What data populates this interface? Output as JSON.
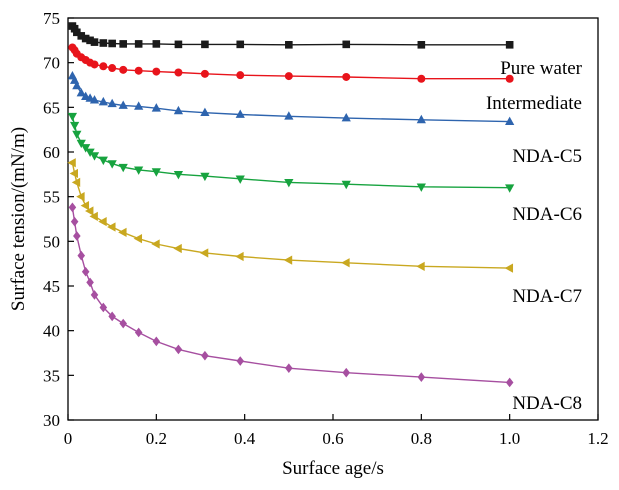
{
  "chart_data": {
    "type": "line",
    "title": "",
    "xlabel": "Surface age/s",
    "ylabel": "Surface tension/(mN/m)",
    "xlim": [
      0,
      1.2
    ],
    "ylim": [
      30,
      75
    ],
    "xticks": [
      "0",
      "0.2",
      "0.4",
      "0.6",
      "0.8",
      "1.0",
      "1.2"
    ],
    "yticks": [
      "30",
      "35",
      "40",
      "45",
      "50",
      "55",
      "60",
      "65",
      "70",
      "75"
    ],
    "grid": false,
    "series": [
      {
        "name": "Pure water",
        "color": "#1a1a1a",
        "marker": "square",
        "x": [
          0.01,
          0.015,
          0.02,
          0.03,
          0.04,
          0.05,
          0.06,
          0.08,
          0.1,
          0.125,
          0.16,
          0.2,
          0.25,
          0.31,
          0.39,
          0.5,
          0.63,
          0.8,
          1.0
        ],
        "y": [
          74.1,
          73.8,
          73.4,
          73.0,
          72.7,
          72.5,
          72.3,
          72.2,
          72.15,
          72.1,
          72.1,
          72.1,
          72.05,
          72.05,
          72.05,
          72.0,
          72.05,
          72.0,
          72.0
        ]
      },
      {
        "name": "Intermediate",
        "color": "#e8141b",
        "marker": "circle",
        "x": [
          0.01,
          0.015,
          0.02,
          0.03,
          0.04,
          0.05,
          0.06,
          0.08,
          0.1,
          0.125,
          0.16,
          0.2,
          0.25,
          0.31,
          0.39,
          0.5,
          0.63,
          0.8,
          1.0
        ],
        "y": [
          71.7,
          71.4,
          71.0,
          70.6,
          70.3,
          70.0,
          69.8,
          69.6,
          69.4,
          69.2,
          69.1,
          69.0,
          68.9,
          68.75,
          68.6,
          68.5,
          68.4,
          68.2,
          68.2
        ]
      },
      {
        "name": "NDA-C5",
        "color": "#2e64ae",
        "marker": "triangle-up",
        "x": [
          0.01,
          0.015,
          0.02,
          0.03,
          0.04,
          0.05,
          0.06,
          0.08,
          0.1,
          0.125,
          0.16,
          0.2,
          0.25,
          0.31,
          0.39,
          0.5,
          0.63,
          0.8,
          1.0
        ],
        "y": [
          68.5,
          68.0,
          67.4,
          66.6,
          66.2,
          66.0,
          65.8,
          65.6,
          65.4,
          65.2,
          65.1,
          64.9,
          64.6,
          64.4,
          64.2,
          64.0,
          63.8,
          63.6,
          63.4
        ]
      },
      {
        "name": "NDA-C6",
        "color": "#17a33f",
        "marker": "triangle-down",
        "x": [
          0.01,
          0.015,
          0.02,
          0.03,
          0.04,
          0.05,
          0.06,
          0.08,
          0.1,
          0.125,
          0.16,
          0.2,
          0.25,
          0.31,
          0.39,
          0.5,
          0.63,
          0.8,
          1.0
        ],
        "y": [
          64.0,
          63.0,
          62.0,
          61.0,
          60.5,
          60.0,
          59.6,
          59.1,
          58.7,
          58.3,
          58.0,
          57.8,
          57.5,
          57.3,
          57.0,
          56.6,
          56.4,
          56.1,
          56.0
        ]
      },
      {
        "name": "NDA-C7",
        "color": "#c9a820",
        "marker": "triangle-left",
        "x": [
          0.01,
          0.015,
          0.02,
          0.03,
          0.04,
          0.05,
          0.06,
          0.08,
          0.1,
          0.125,
          0.16,
          0.2,
          0.25,
          0.31,
          0.39,
          0.5,
          0.63,
          0.8,
          1.0
        ],
        "y": [
          58.8,
          57.6,
          56.6,
          55.0,
          54.0,
          53.4,
          52.8,
          52.2,
          51.6,
          51.0,
          50.3,
          49.7,
          49.2,
          48.7,
          48.3,
          47.9,
          47.6,
          47.2,
          47.0
        ]
      },
      {
        "name": "NDA-C8",
        "color": "#a64fa0",
        "marker": "diamond",
        "x": [
          0.01,
          0.015,
          0.02,
          0.03,
          0.04,
          0.05,
          0.06,
          0.08,
          0.1,
          0.125,
          0.16,
          0.2,
          0.25,
          0.31,
          0.39,
          0.5,
          0.63,
          0.8,
          1.0
        ],
        "y": [
          53.8,
          52.2,
          50.6,
          48.4,
          46.6,
          45.4,
          44.0,
          42.6,
          41.6,
          40.8,
          39.8,
          38.8,
          37.9,
          37.2,
          36.6,
          35.8,
          35.3,
          34.8,
          34.2
        ]
      }
    ]
  }
}
